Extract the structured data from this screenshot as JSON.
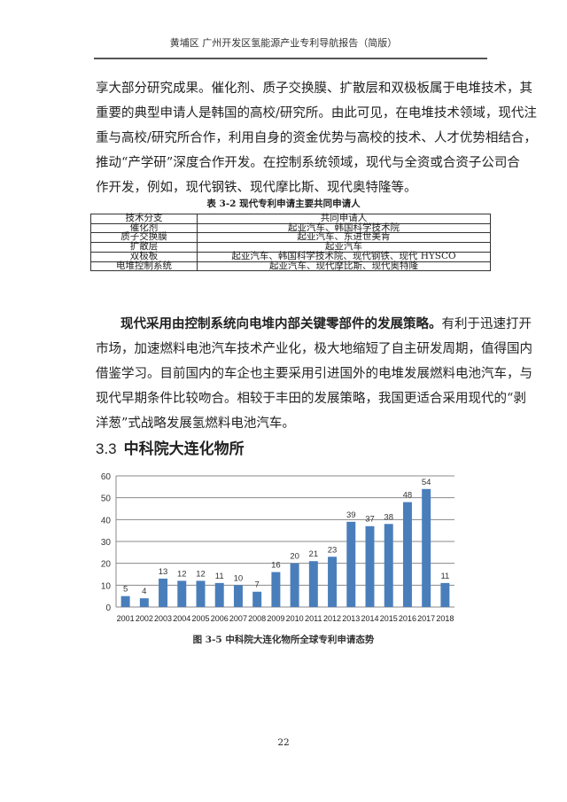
{
  "header": {
    "title": "黄埔区 广州开发区氢能源产业专利导航报告（简版）"
  },
  "paragraph1": {
    "lines": [
      "享大部分研究成果。催化剂、质子交换膜、扩散层和双极板属于电堆技术，其",
      "重要的典型申请人是韩国的高校/研究所。由此可见，在电堆技术领域，现代注",
      "重与高校/研究所合作，利用自身的资金优势与高校的技术、人才优势相结合，",
      "推动“产学研”深度合作开发。在控制系统领域，现代与全资或合资子公司合",
      "作开发，例如，现代钢铁、现代摩比斯、现代奥特隆等。"
    ]
  },
  "table": {
    "caption": "表 3-2 现代专利申请主要共同申请人",
    "headers": [
      "技术分支",
      "共同申请人"
    ],
    "rows": [
      [
        "催化剂",
        "起亚汽车、韩国科学技术院"
      ],
      [
        "质子交换膜",
        "起亚汽车、东进世美肯"
      ],
      [
        "扩散层",
        "起亚汽车"
      ],
      [
        "双极板",
        "起亚汽车、韩国科学技术院、现代钢铁、现代 HYSCO"
      ],
      [
        "电堆控制系统",
        "起亚汽车、现代摩比斯、现代奥特隆"
      ]
    ]
  },
  "paragraph2": {
    "bold_lead": "现代采用由控制系统向电堆内部关键零部件的发展策略。",
    "first_rest": "有利于迅速打开",
    "lines": [
      "市场，加速燃料电池汽车技术产业化，极大地缩短了自主研发周期，值得国内",
      "借鉴学习。目前国内的车企也主要采用引进国外的电堆发展燃料电池汽车，与",
      "现代早期条件比较吻合。相较于丰田的发展策略，我国更适合采用现代的“剥",
      "洋葱”式战略发展氢燃料电池汽车。"
    ]
  },
  "section": {
    "number": "3.3",
    "title": "中科院大连化物所"
  },
  "chart_data": {
    "type": "bar",
    "categories": [
      "2001",
      "2002",
      "2003",
      "2004",
      "2005",
      "2006",
      "2007",
      "2008",
      "2009",
      "2010",
      "2011",
      "2012",
      "2013",
      "2014",
      "2015",
      "2016",
      "2017",
      "2018"
    ],
    "values": [
      5,
      4,
      13,
      12,
      12,
      11,
      10,
      7,
      16,
      20,
      21,
      23,
      39,
      37,
      38,
      48,
      54,
      11
    ],
    "ylim": [
      0,
      60
    ],
    "yticks": [
      0,
      10,
      20,
      30,
      40,
      50,
      60
    ],
    "grid": true,
    "bar_color": "#4a7ebb",
    "title": "",
    "xlabel": "",
    "ylabel": ""
  },
  "figure": {
    "caption": "图 3-5  中科院大连化物所全球专利申请态势"
  },
  "page_number": "22"
}
